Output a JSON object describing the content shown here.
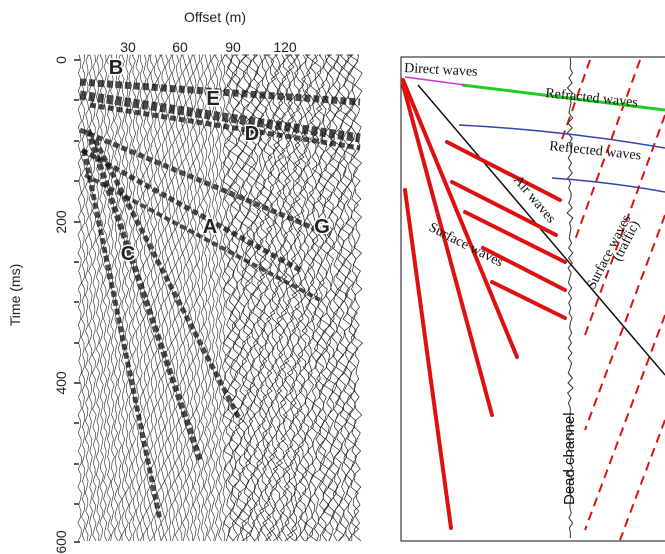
{
  "seismogram": {
    "x_axis_title": "Offset (m)",
    "y_axis_title": "Time (ms)",
    "x_ticks": [
      "30",
      "60",
      "90",
      "120"
    ],
    "y_ticks": [
      "0",
      "200",
      "400",
      "600"
    ],
    "markers": [
      "B",
      "E",
      "D",
      "A",
      "G",
      "C"
    ]
  },
  "interpretation": {
    "labels": {
      "direct": "Direct waves",
      "refracted": "Refracted waves",
      "reflected": "Reflected waves",
      "air": "Air waves",
      "surface_left": "Surface waves",
      "surface_traffic_1": "Surface waves",
      "surface_traffic_2": "(traffic)",
      "dead_channel": "Dead channel"
    },
    "colors": {
      "refracted": "#22cc22",
      "reflected": "#3344aa",
      "direct": "#cc33cc",
      "surface": "#dd1111",
      "air": "#111111"
    }
  }
}
